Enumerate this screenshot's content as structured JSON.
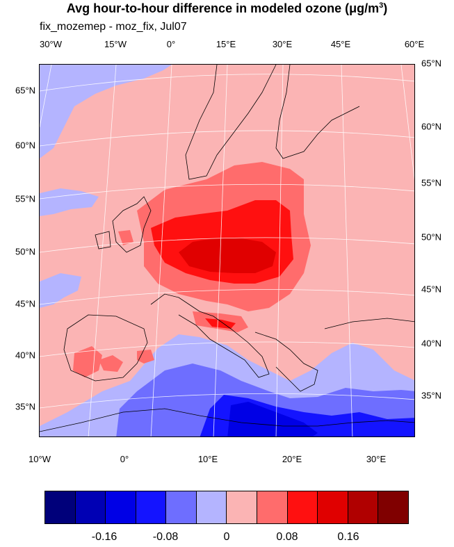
{
  "title": {
    "text": "Avg hour-to-hour difference in modeled ozone (",
    "mu": "μ",
    "unit": "g/m",
    "sup": "3",
    "close": ")"
  },
  "subtitle": "fix_mozemep - moz_fix,  Jul07",
  "top_lon_labels": [
    "30°W",
    "15°W",
    "0°",
    "15°E",
    "30°E",
    "45°E",
    "60°E"
  ],
  "left_lat_labels": [
    "65°N",
    "60°N",
    "55°N",
    "50°N",
    "45°N",
    "40°N",
    "35°N"
  ],
  "right_lat_labels": [
    "65°N",
    "60°N",
    "55°N",
    "50°N",
    "45°N",
    "40°N",
    "35°N"
  ],
  "bottom_lon_labels": [
    "10°W",
    "0°",
    "10°E",
    "20°E",
    "30°E"
  ],
  "colorbar": {
    "colors": [
      "#00007a",
      "#0000b4",
      "#0000e6",
      "#1414ff",
      "#6e6eff",
      "#b4b4ff",
      "#fbb4b4",
      "#ff6c6c",
      "#ff1010",
      "#e00000",
      "#b00000",
      "#800000"
    ],
    "labels": [
      "-0.16",
      "-0.08",
      "0",
      "0.08",
      "0.16"
    ]
  },
  "map_colors": {
    "ocean_pos": "#fbb4b4",
    "light_blue": "#b4b4ff",
    "mid_blue": "#6e6eff",
    "blue": "#1414ff",
    "deep_blue": "#0000e6",
    "light_red": "#ff6c6c",
    "red": "#ff1010",
    "dark_red": "#e00000"
  }
}
